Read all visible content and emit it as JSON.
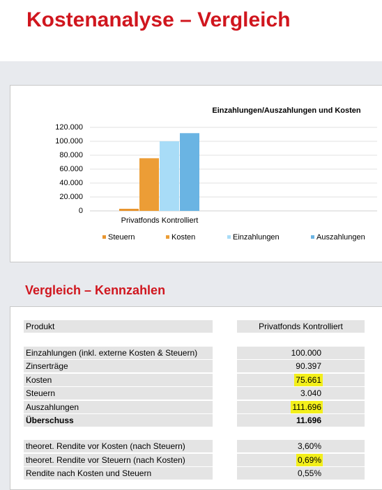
{
  "title": "Kostenanalyse – Vergleich",
  "chart_data": {
    "type": "bar",
    "title": "Einzahlungen/Auszahlungen und Kosten",
    "categories": [
      "Privatfonds Kontrolliert"
    ],
    "series": [
      {
        "name": "Steuern",
        "color": "#e8952f",
        "values": [
          3040
        ]
      },
      {
        "name": "Kosten",
        "color": "#ec9d36",
        "values": [
          75661
        ]
      },
      {
        "name": "Einzahlungen",
        "color": "#a8dcf7",
        "values": [
          100000
        ]
      },
      {
        "name": "Auszahlungen",
        "color": "#6ab4e3",
        "values": [
          111696
        ]
      }
    ],
    "ylim": [
      0,
      120000
    ],
    "yticks": [
      0,
      {
        "value": 20000,
        "label": "20.000"
      },
      {
        "value": 40000,
        "label": "40.000"
      },
      {
        "value": 60000,
        "label": "60.000"
      },
      {
        "value": 80000,
        "label": "80.000"
      },
      {
        "value": 100000,
        "label": "100.000"
      },
      {
        "value": 120000,
        "label": "120.000"
      }
    ],
    "grid": true,
    "legend": "bottom"
  },
  "section_title": "Vergleich – Kennzahlen",
  "table": {
    "header": [
      "Produkt",
      "Privatfonds Kontrolliert"
    ],
    "groups": [
      [
        {
          "label": "Einzahlungen (inkl. externe Kosten & Steuern)",
          "value": "100.000"
        },
        {
          "label": "Zinserträge",
          "value": "90.397"
        },
        {
          "label": "Kosten",
          "value": "75.661",
          "highlight": true
        },
        {
          "label": "Steuern",
          "value": "3.040"
        },
        {
          "label": "Auszahlungen",
          "value": "111.696",
          "highlight": true
        },
        {
          "label": "Überschuss",
          "value": "11.696",
          "bold": true
        }
      ],
      [
        {
          "label": "theoret. Rendite vor Kosten (nach Steuern)",
          "value": "3,60%"
        },
        {
          "label": "theoret. Rendite vor Steuern (nach Kosten)",
          "value": "0,69%",
          "highlight": true
        },
        {
          "label": "Rendite nach Kosten und Steuern",
          "value": "0,55%"
        }
      ]
    ]
  }
}
